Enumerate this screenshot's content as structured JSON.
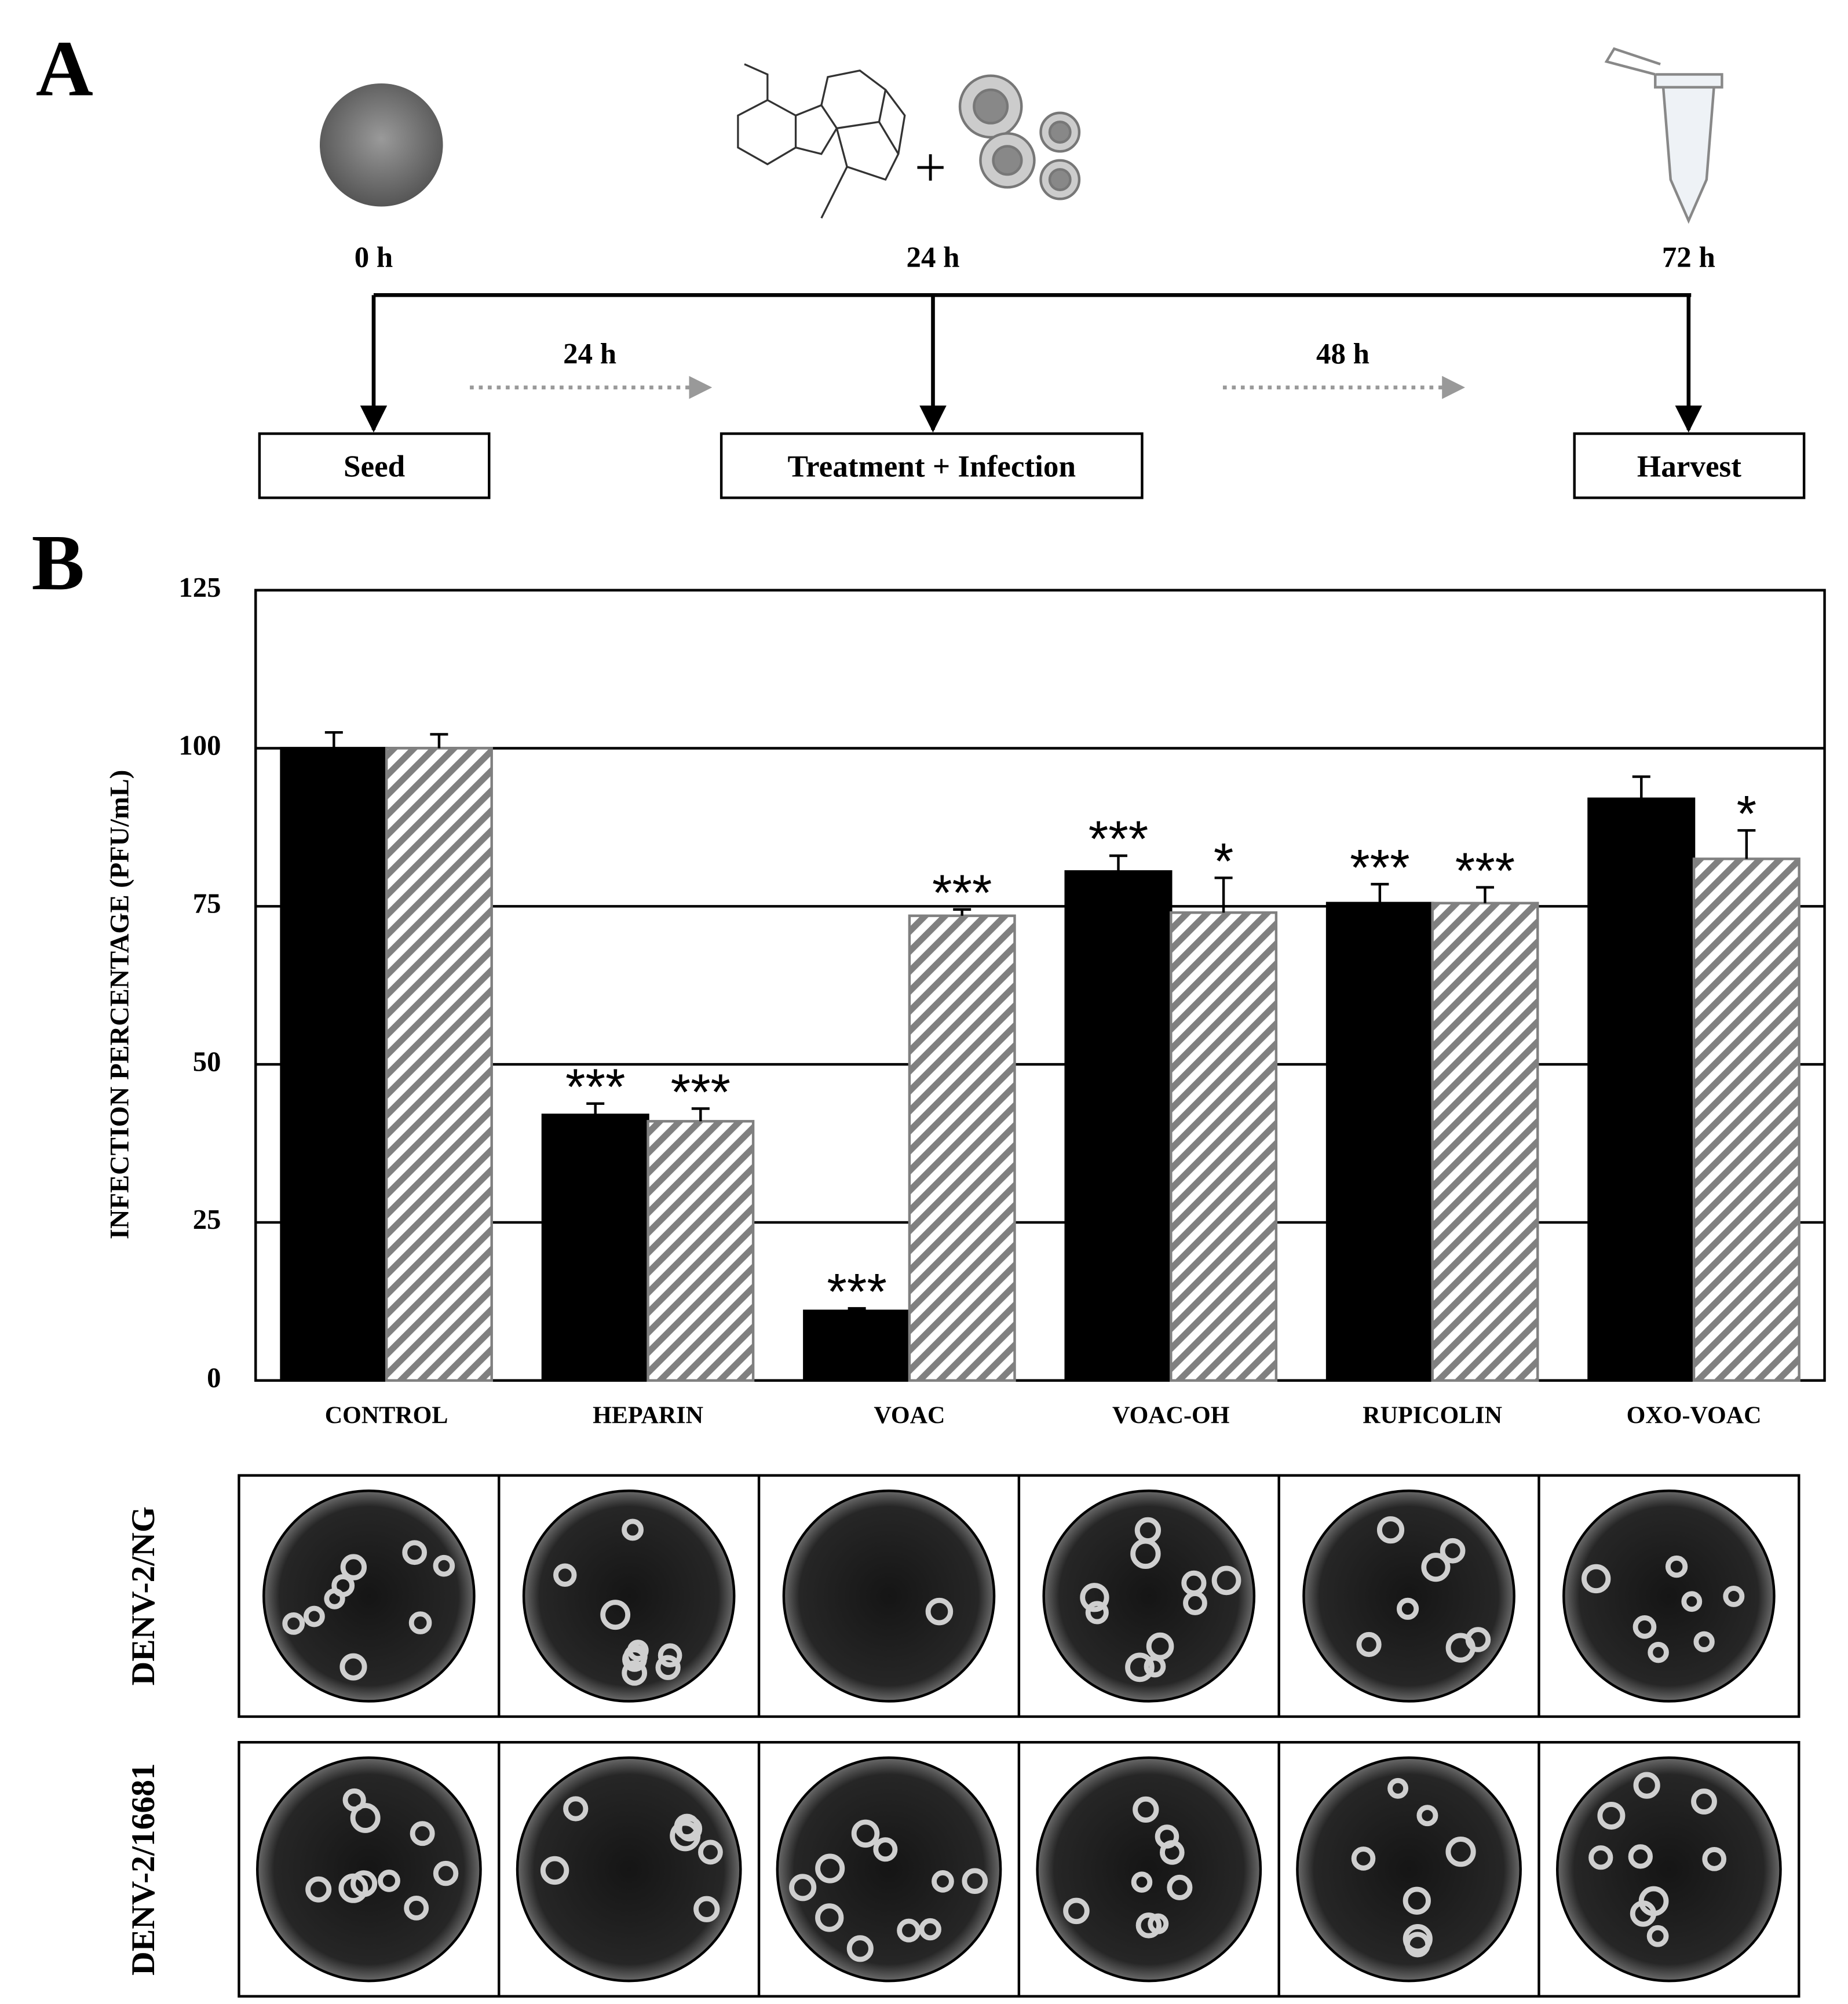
{
  "diagram": {
    "panel_label": "A",
    "times": [
      "0 h",
      "24 h",
      "72 h"
    ],
    "intervals": [
      "24 h",
      "48 h"
    ],
    "steps": [
      "Seed",
      "Treatment + Infection",
      "Harvest"
    ]
  },
  "chart_data": {
    "type": "bar",
    "panel_label": "B",
    "ylabel": "INFECTION PERCENTAGE (PFU/mL)",
    "categories": [
      "CONTROL",
      "HEPARIN",
      "VOAC",
      "VOAC-OH",
      "RUPICOLIN",
      "OXO-VOAC"
    ],
    "series": [
      {
        "color": "#000000",
        "pattern": "solid",
        "values": [
          100,
          42,
          11,
          80.5,
          75.5,
          92
        ],
        "errors": [
          2.5,
          1.8,
          0.4,
          2.5,
          3,
          3.5
        ],
        "significance": [
          null,
          "***",
          "***",
          "***",
          "***",
          null
        ]
      },
      {
        "color": "#808080",
        "pattern": "diagonal",
        "values": [
          100,
          41,
          73.5,
          74,
          75.5,
          82.5
        ],
        "errors": [
          2.2,
          2,
          1,
          5.5,
          2.5,
          4.5
        ],
        "significance": [
          null,
          "***",
          "***",
          "*",
          "***",
          "*"
        ]
      }
    ],
    "ylim": [
      0,
      125
    ],
    "yticks": [
      0,
      25,
      50,
      75,
      100,
      125
    ],
    "grid": true
  },
  "plaque_images": {
    "rows": [
      "DENV-2/NG",
      "DENV-2/16681"
    ]
  }
}
